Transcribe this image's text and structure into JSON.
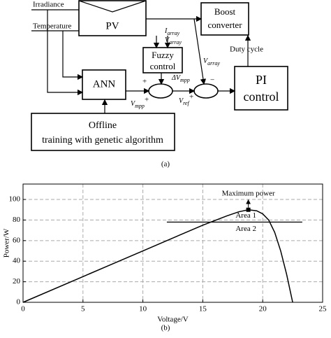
{
  "diagram": {
    "inputs": [
      "Irradiance",
      "Temperature"
    ],
    "pv": "PV",
    "boost": [
      "Boost",
      "converter"
    ],
    "fuzzy": [
      "Fuzzy",
      "control"
    ],
    "ann": "ANN",
    "pi": [
      "PI",
      "control"
    ],
    "offline": [
      "Offline",
      "training with genetic algorithm"
    ],
    "duty_cycle": "Duty cycle",
    "i_array": {
      "symbol": "I",
      "subscript": "array"
    },
    "v_array_fuzzy": {
      "symbol": "V",
      "subscript": "array"
    },
    "v_array_pi": {
      "symbol": "V",
      "subscript": "array"
    },
    "delta_v_mpp": {
      "symbol": "ΔV",
      "subscript": "mpp"
    },
    "v_mpp": {
      "symbol": "V",
      "subscript": "mpp"
    },
    "v_ref": {
      "symbol": "V",
      "subscript": "ref"
    },
    "signs": [
      "+",
      "+",
      "+",
      "−"
    ],
    "caption": "(a)"
  },
  "chart_data": {
    "type": "line",
    "caption": "(b)",
    "xlabel": "Voltage/V",
    "ylabel": "Power/W",
    "x": [
      0,
      5,
      10,
      15,
      17,
      18,
      18.8,
      19.5,
      20,
      20.5,
      21,
      21.5,
      22,
      22.5
    ],
    "values": [
      0,
      25,
      50,
      75,
      84,
      88,
      90,
      89,
      86,
      80,
      68,
      50,
      27,
      0
    ],
    "color": "#000000",
    "xlim": [
      0,
      25
    ],
    "ylim": [
      0,
      115
    ],
    "xticks": [
      0,
      5,
      10,
      15,
      20,
      25
    ],
    "yticks": [
      0,
      20,
      40,
      60,
      80,
      100
    ],
    "grid": true,
    "peak": {
      "x": 18.8,
      "y": 90,
      "label": "Maximum power"
    },
    "threshold": {
      "y": 78,
      "x": [
        12,
        23.3
      ]
    },
    "areas": [
      {
        "text": "Area 1",
        "x": 18.6,
        "y": 84
      },
      {
        "text": "Area 2",
        "x": 18.6,
        "y": 71
      }
    ]
  }
}
